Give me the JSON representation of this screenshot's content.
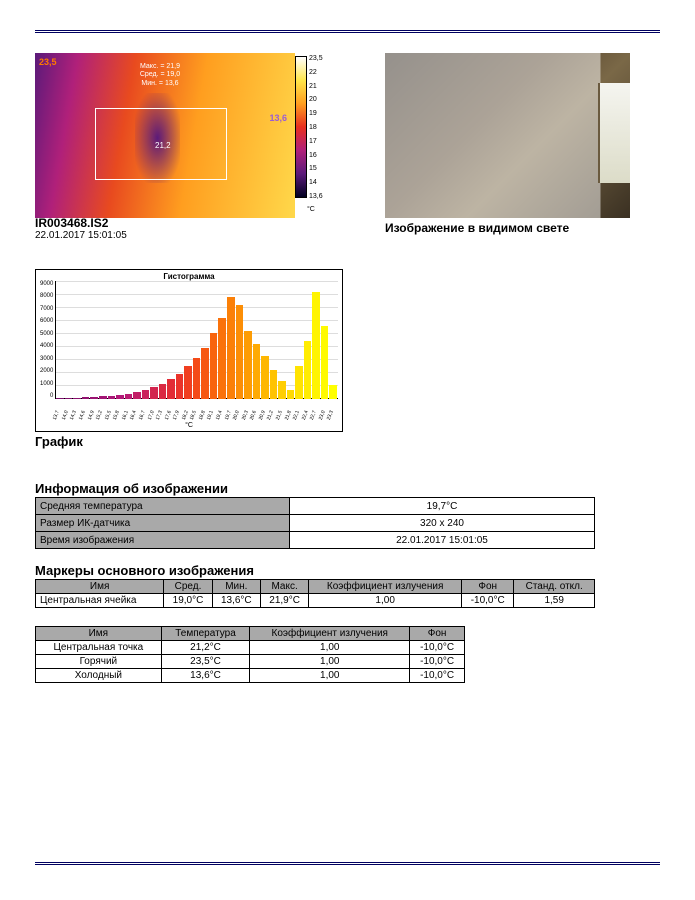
{
  "thermal": {
    "corner_hot": "23,5",
    "corner_cold": "13,6",
    "stats_max": "Макс. = 21,9",
    "stats_avg": "Сред. = 19,0",
    "stats_min": "Мин. = 13,6",
    "center_point": "21,2",
    "filename": "IR003468.IS2",
    "timestamp": "22.01.2017 15:01:05",
    "scale_ticks": [
      "23,5",
      "22",
      "21",
      "20",
      "19",
      "18",
      "17",
      "16",
      "15",
      "14",
      "13,6"
    ],
    "scale_unit": "°C"
  },
  "visible": {
    "label": "Изображение в видимом свете"
  },
  "histogram": {
    "title": "Гистограмма",
    "type": "bar",
    "ylim": [
      0,
      9000
    ],
    "ytick_step": 1000,
    "yticks": [
      "9000",
      "8000",
      "7000",
      "6000",
      "5000",
      "4000",
      "3000",
      "2000",
      "1000",
      "0"
    ],
    "xlabel": "°C",
    "xtick_labels": [
      "13,7",
      "14,0",
      "14,3",
      "14,6",
      "14,9",
      "15,2",
      "15,5",
      "15,8",
      "16,1",
      "16,4",
      "16,7",
      "17,0",
      "17,3",
      "17,6",
      "17,9",
      "18,2",
      "18,5",
      "18,8",
      "19,1",
      "19,4",
      "19,7",
      "20,0",
      "20,3",
      "20,6",
      "20,9",
      "21,2",
      "21,5",
      "21,8",
      "22,1",
      "22,4",
      "22,7",
      "23,0",
      "23,3"
    ],
    "values": [
      60,
      80,
      100,
      130,
      170,
      210,
      260,
      330,
      420,
      540,
      700,
      900,
      1150,
      1500,
      1900,
      2500,
      3100,
      3900,
      5000,
      6200,
      7750,
      7200,
      5200,
      4200,
      3300,
      2200,
      1400,
      700,
      2500,
      4400,
      8200,
      5600,
      1100
    ],
    "bar_colors": [
      "#7a0e6a",
      "#820f6c",
      "#8a106e",
      "#921270",
      "#9a1372",
      "#a21574",
      "#aa1776",
      "#b21978",
      "#ba1b72",
      "#c21e66",
      "#ca215a",
      "#d2244e",
      "#da2842",
      "#e22c36",
      "#ea332a",
      "#f03e20",
      "#f44a18",
      "#f65712",
      "#f8640e",
      "#fa720b",
      "#fb8008",
      "#fc8e06",
      "#fd9c04",
      "#feaa03",
      "#feb702",
      "#ffc302",
      "#ffce02",
      "#ffd902",
      "#ffe302",
      "#ffec02",
      "#fff402",
      "#fffa02",
      "#ffff02"
    ],
    "background_color": "#ffffff",
    "grid_color": "#dddddd",
    "caption": "График"
  },
  "info_section": {
    "title": "Информация об изображении",
    "rows": [
      {
        "label": "Средняя температура",
        "value": "19,7°C"
      },
      {
        "label": "Размер ИК-датчика",
        "value": "320 x 240"
      },
      {
        "label": "Время изображения",
        "value": "22.01.2017 15:01:05"
      }
    ]
  },
  "markers_section": {
    "title": "Маркеры основного изображения",
    "headers": [
      "Имя",
      "Сред.",
      "Мин.",
      "Макс.",
      "Коэффициент излучения",
      "Фон",
      "Станд. откл."
    ],
    "rows": [
      {
        "name": "Центральная ячейка",
        "avg": "19,0°C",
        "min": "13,6°C",
        "max": "21,9°C",
        "emis": "1,00",
        "bg": "-10,0°C",
        "std": "1,59"
      }
    ]
  },
  "points_table": {
    "headers": [
      "Имя",
      "Температура",
      "Коэффициент излучения",
      "Фон"
    ],
    "rows": [
      {
        "name": "Центральная точка",
        "temp": "21,2°C",
        "emis": "1,00",
        "bg": "-10,0°C"
      },
      {
        "name": "Горячий",
        "temp": "23,5°C",
        "emis": "1,00",
        "bg": "-10,0°C"
      },
      {
        "name": "Холодный",
        "temp": "13,6°C",
        "emis": "1,00",
        "bg": "-10,0°C"
      }
    ]
  }
}
